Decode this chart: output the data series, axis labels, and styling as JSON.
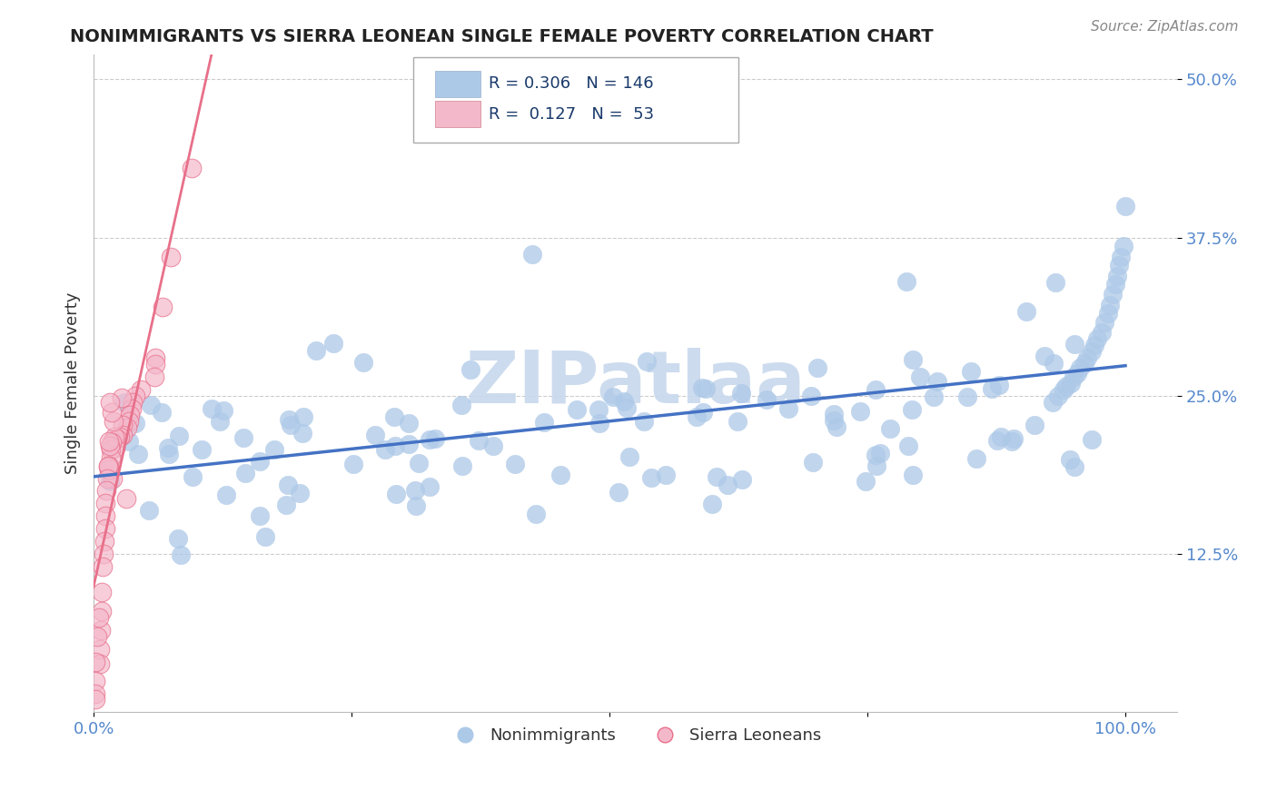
{
  "title": "NONIMMIGRANTS VS SIERRA LEONEAN SINGLE FEMALE POVERTY CORRELATION CHART",
  "source": "Source: ZipAtlas.com",
  "ylabel_label": "Single Female Poverty",
  "y_tick_labels": [
    "12.5%",
    "25.0%",
    "37.5%",
    "50.0%"
  ],
  "y_ticks": [
    0.125,
    0.25,
    0.375,
    0.5
  ],
  "x_tick_labels": [
    "0.0%",
    "",
    "",
    "",
    "100.0%"
  ],
  "x_ticks": [
    0.0,
    0.25,
    0.5,
    0.75,
    1.0
  ],
  "blue_R": 0.306,
  "blue_N": 146,
  "pink_R": 0.127,
  "pink_N": 53,
  "blue_color": "#adc9e8",
  "blue_edge_color": "#adc9e8",
  "blue_line_color": "#4472c4",
  "pink_color": "#f4b8cb",
  "pink_edge_color": "#e8708a",
  "pink_line_color": "#e8708a",
  "watermark": "ZIPatlaa",
  "watermark_color": "#c8d8ed",
  "legend_label_blue": "Nonimmigrants",
  "legend_label_pink": "Sierra Leoneans",
  "background_color": "#ffffff",
  "grid_color": "#cccccc",
  "title_color": "#222222",
  "axis_label_color": "#5588cc",
  "right_tick_color": "#5588cc",
  "ylim": [
    0.0,
    0.52
  ],
  "xlim": [
    0.0,
    1.05
  ]
}
